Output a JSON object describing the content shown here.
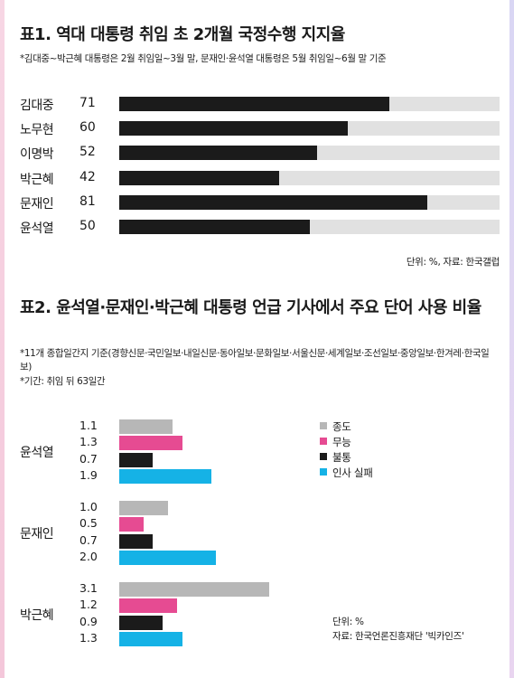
{
  "chart_data": [
    {
      "type": "bar",
      "title": "표1. 역대 대통령 취임 초 2개월 국정수행 지지율",
      "subtitle": "*김대중~박근혜 대통령은 2월 취임일~3월 말, 문재인·윤석열 대통령은 5월 취임일~6월 말 기준",
      "categories": [
        "김대중",
        "노무현",
        "이명박",
        "박근혜",
        "문재인",
        "윤석열"
      ],
      "values": [
        71,
        60,
        52,
        42,
        81,
        50
      ],
      "ylim": [
        0,
        100
      ],
      "source": "단위: %, 자료: 한국갤럽",
      "colors": {
        "bar": "#1b1b1b",
        "track": "#e1e1e1"
      }
    },
    {
      "type": "bar",
      "title": "표2. 윤석열·문재인·박근혜 대통령 언급 기사에서 주요 단어 사용 비율",
      "notes": [
        "*11개 종합일간지 기준(경향신문·국민일보·내일신문·동아일보·문화일보·서울신문·세계일보·조선일보·중앙일보·한겨레·한국일보)",
        "*기간: 취임 뒤 63일간"
      ],
      "categories": [
        "윤석열",
        "문재인",
        "박근혜"
      ],
      "series": [
        {
          "name": "종도",
          "color": "#b7b7b7",
          "values": [
            1.1,
            1.0,
            3.1
          ]
        },
        {
          "name": "무능",
          "color": "#e64b92",
          "values": [
            1.3,
            0.5,
            1.2
          ]
        },
        {
          "name": "불통",
          "color": "#1b1b1b",
          "values": [
            0.7,
            0.7,
            0.9
          ]
        },
        {
          "name": "인사 실패",
          "color": "#15b2e6",
          "values": [
            1.9,
            2.0,
            1.3
          ]
        }
      ],
      "value_labels": [
        [
          "1.1",
          "1.3",
          "0.7",
          "1.9"
        ],
        [
          "1.0",
          "0.5",
          "0.7",
          "2.0"
        ],
        [
          "3.1",
          "1.2",
          "0.9",
          "1.3"
        ]
      ],
      "source_lines": [
        "단위: %",
        "자료: 한국언론진흥재단 '빅카인즈'"
      ]
    }
  ]
}
